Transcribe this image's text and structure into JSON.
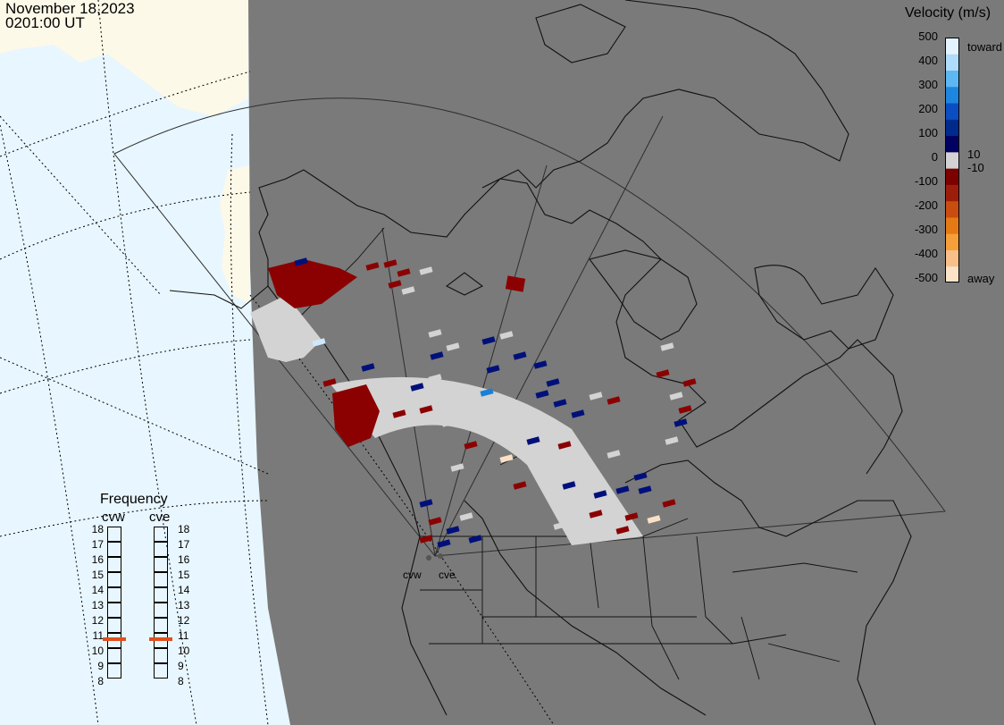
{
  "header": {
    "date": "November 18,2023",
    "time": "0201:00 UT"
  },
  "colorbar": {
    "title": "Velocity (m/s)",
    "ticks": [
      "500",
      "400",
      "300",
      "200",
      "100",
      "10",
      "0",
      "-10",
      "-100",
      "-200",
      "-300",
      "-400",
      "-500"
    ],
    "toward_label": "toward",
    "away_label": "away",
    "colors": [
      "#fbe3c7",
      "#f8c088",
      "#f49f3a",
      "#e57a14",
      "#c84d0e",
      "#9c1e0a",
      "#7c0000",
      "#d3d3d3",
      "#000060",
      "#002a8c",
      "#0b4ec2",
      "#1c86e0",
      "#5cb7f2",
      "#aedcfa",
      "#e4f4ff"
    ]
  },
  "frequency": {
    "title": "Frequency",
    "radars": [
      {
        "name": "cvw",
        "mhz": 10.6
      },
      {
        "name": "cve",
        "mhz": 10.6
      }
    ],
    "scale": [
      "18",
      "17",
      "16",
      "15",
      "14",
      "13",
      "12",
      "11",
      "10",
      "9",
      "8"
    ],
    "marker_color": "#e0501e"
  },
  "sites": {
    "west": "cvw",
    "east": "cve"
  },
  "map": {
    "ocean_color": "#e8f6ff",
    "land_color": "#fdf9e8",
    "night_color": "#7a7a7a",
    "echo_colors": {
      "ground": "#d3d3d3",
      "slow_away": "#8b0000",
      "slow_toward": "#00107a",
      "mid_toward": "#1a7fd6",
      "fast_toward": "#cfe8fb",
      "fast_away": "#fbe0c6"
    }
  }
}
